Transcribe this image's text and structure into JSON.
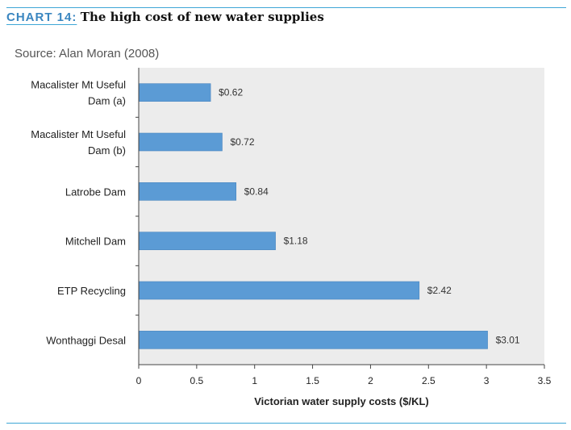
{
  "header": {
    "label": "CHART 14:",
    "title": "The high cost of new water supplies"
  },
  "source": "Source: Alan Moran (2008)",
  "colors": {
    "accent": "#3ea6d6",
    "bar": "#5b9bd5",
    "plot_bg": "#ececec"
  },
  "chart_data": {
    "type": "bar",
    "orientation": "horizontal",
    "title": "The high cost of new water supplies",
    "xlabel": "Victorian water supply costs ($/KL)",
    "ylabel": "",
    "xlim": [
      0,
      3.5
    ],
    "xticks": [
      "0",
      "0.5",
      "1",
      "1.5",
      "2",
      "2.5",
      "3",
      "3.5"
    ],
    "categories": [
      [
        "Macalister Mt Useful",
        "Dam (a)"
      ],
      [
        "Macalister Mt Useful",
        "Dam (b)"
      ],
      [
        "Latrobe Dam"
      ],
      [
        "Mitchell Dam"
      ],
      [
        "ETP Recycling"
      ],
      [
        "Wonthaggi Desal"
      ]
    ],
    "values": [
      0.62,
      0.72,
      0.84,
      1.18,
      2.42,
      3.01
    ],
    "data_labels": [
      "$0.62",
      "$0.72",
      "$0.84",
      "$1.18",
      "$2.42",
      "$3.01"
    ],
    "grid": false,
    "legend": "none"
  }
}
